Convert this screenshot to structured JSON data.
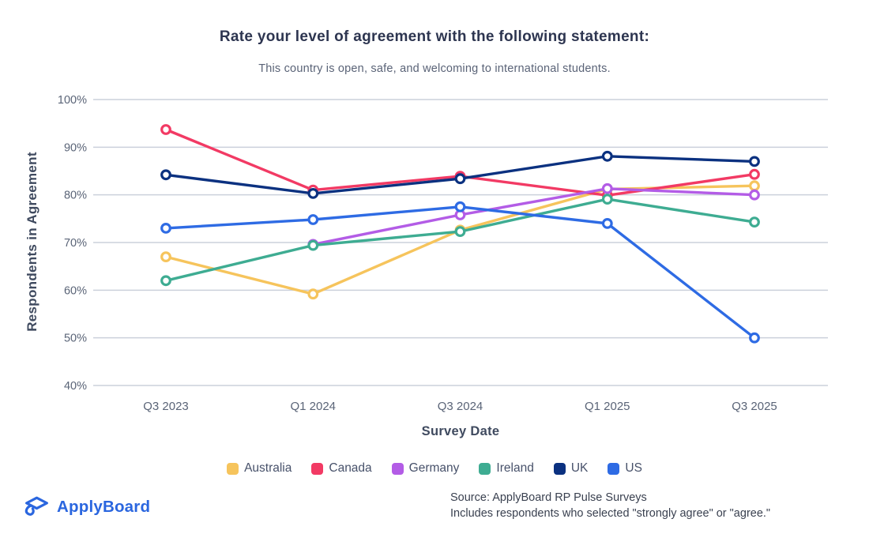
{
  "header": {
    "title": "Rate your level of agreement with the following statement:",
    "subtitle": "This country is open, safe, and welcoming to international students."
  },
  "chart_data": {
    "type": "line",
    "title": "Rate your level of agreement with the following statement:",
    "subtitle": "This country is open, safe, and welcoming to international students.",
    "xlabel": "Survey Date",
    "ylabel": "Respondents in Agreement",
    "categories": [
      "Q3 2023",
      "Q1 2024",
      "Q3 2024",
      "Q1 2025",
      "Q3 2025"
    ],
    "y_ticks": [
      "100%",
      "90%",
      "80%",
      "70%",
      "60%",
      "50%",
      "40%"
    ],
    "ylim": [
      40,
      100
    ],
    "grid": "horizontal",
    "legend_position": "bottom",
    "marker": "open-circle",
    "series": [
      {
        "name": "Australia",
        "color": "#F6C45C",
        "values": [
          67,
          59.2,
          72.6,
          81.2,
          81.9
        ]
      },
      {
        "name": "Canada",
        "color": "#F23A64",
        "values": [
          93.7,
          81,
          83.9,
          79.9,
          84.3
        ]
      },
      {
        "name": "Germany",
        "color": "#B35CE6",
        "values": [
          null,
          69.6,
          75.8,
          81.3,
          80
        ]
      },
      {
        "name": "Ireland",
        "color": "#3EAC92",
        "values": [
          62,
          69.4,
          72.3,
          79.1,
          74.3
        ]
      },
      {
        "name": "UK",
        "color": "#0B3180",
        "values": [
          84.2,
          80.3,
          83.4,
          88.1,
          87
        ]
      },
      {
        "name": "US",
        "color": "#2E6BE4",
        "values": [
          73,
          74.8,
          77.5,
          74,
          50
        ]
      }
    ],
    "grid_color": "#CBD0DB",
    "tick_color": "#5A6477"
  },
  "footer": {
    "brand": "ApplyBoard",
    "source_line1": "Source: ApplyBoard RP Pulse Surveys",
    "source_line2": "Includes respondents who selected \"strongly agree\" or \"agree.\""
  }
}
